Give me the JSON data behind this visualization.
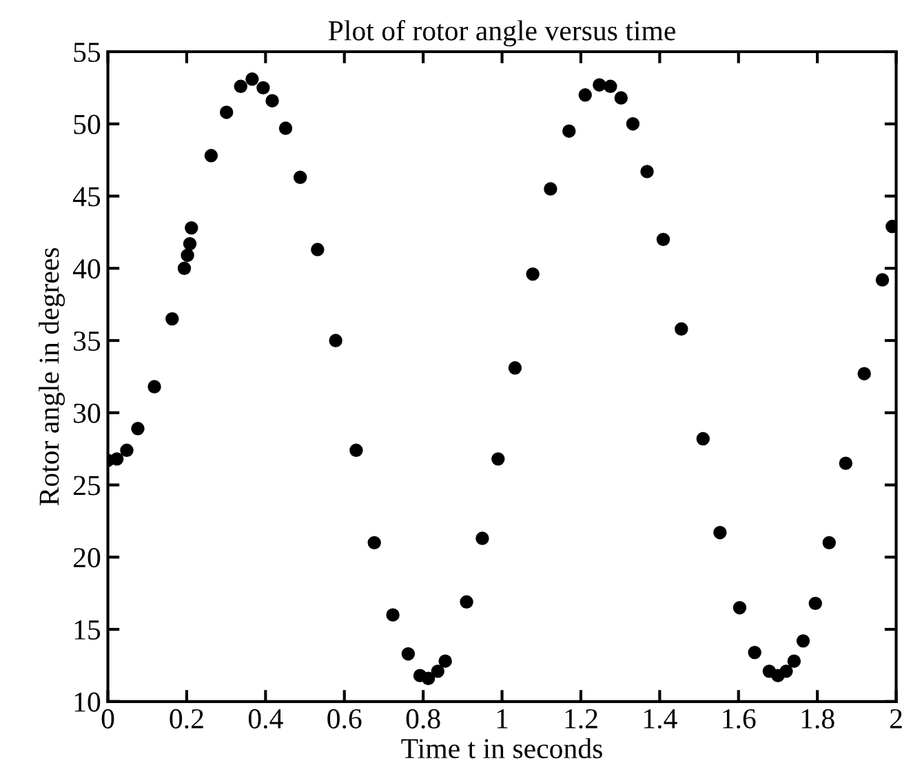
{
  "chart_data": {
    "type": "scatter",
    "title": "Plot of rotor angle versus time",
    "xlabel": "Time t in seconds",
    "ylabel": "Rotor angle in degrees",
    "x": [
      0.0,
      0.023,
      0.048,
      0.076,
      0.118,
      0.163,
      0.194,
      0.202,
      0.208,
      0.212,
      0.262,
      0.301,
      0.337,
      0.366,
      0.394,
      0.417,
      0.451,
      0.488,
      0.532,
      0.578,
      0.63,
      0.676,
      0.723,
      0.762,
      0.792,
      0.813,
      0.837,
      0.856,
      0.91,
      0.95,
      0.99,
      1.033,
      1.078,
      1.123,
      1.17,
      1.211,
      1.247,
      1.275,
      1.302,
      1.332,
      1.368,
      1.409,
      1.455,
      1.51,
      1.553,
      1.603,
      1.641,
      1.678,
      1.7,
      1.721,
      1.741,
      1.764,
      1.795,
      1.83,
      1.872,
      1.919,
      1.965,
      1.99
    ],
    "series": [
      {
        "color": "#000000",
        "values": [
          26.7,
          26.8,
          27.4,
          28.9,
          31.8,
          36.5,
          40.0,
          40.9,
          41.7,
          42.8,
          47.8,
          50.8,
          52.6,
          53.1,
          52.5,
          51.6,
          49.7,
          46.3,
          41.3,
          35.0,
          27.4,
          21.0,
          16.0,
          13.3,
          11.8,
          11.6,
          12.1,
          12.8,
          16.9,
          21.3,
          26.8,
          33.1,
          39.6,
          45.5,
          49.5,
          52.0,
          52.7,
          52.6,
          51.8,
          50.0,
          46.7,
          42.0,
          35.8,
          28.2,
          21.7,
          16.5,
          13.4,
          12.1,
          11.8,
          12.1,
          12.8,
          14.2,
          16.8,
          21.0,
          26.5,
          32.7,
          39.2,
          42.9
        ]
      }
    ],
    "xlim": [
      0,
      2
    ],
    "ylim": [
      10,
      55
    ],
    "xticks": [
      0,
      0.2,
      0.4,
      0.6,
      0.8,
      1,
      1.2,
      1.4,
      1.6,
      1.8,
      2
    ],
    "yticks": [
      10,
      15,
      20,
      25,
      30,
      35,
      40,
      45,
      50,
      55
    ],
    "marker": "circle",
    "grid": false,
    "legend": false
  }
}
